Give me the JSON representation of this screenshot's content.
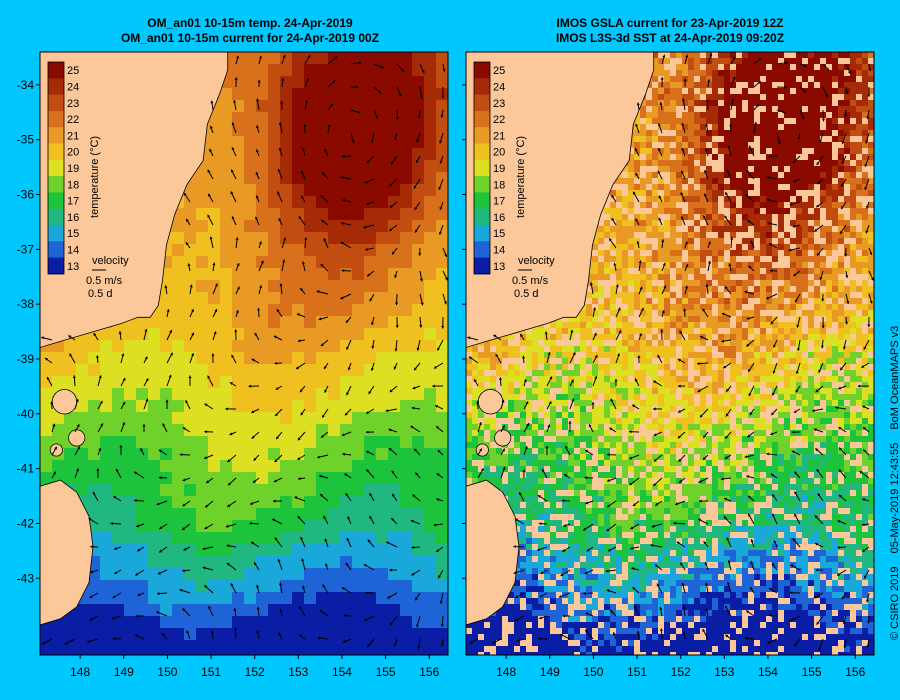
{
  "panels": [
    {
      "title_line1": "OM_an01 10-15m temp. 24-Apr-2019",
      "title_line2": "OM_an01 10-15m current for 24-Apr-2019 00Z",
      "type": "model"
    },
    {
      "title_line1": "IMOS GSLA current for 23-Apr-2019 12Z",
      "title_line2": "IMOS L3S-3d SST at 24-Apr-2019 09:20Z",
      "type": "observed"
    }
  ],
  "axes": {
    "lat_labels": [
      "-34",
      "-35",
      "-36",
      "-37",
      "-38",
      "-39",
      "-40",
      "-41",
      "-42",
      "-43"
    ],
    "lat_values": [
      -34,
      -35,
      -36,
      -37,
      -38,
      -39,
      -40,
      -41,
      -42,
      -43
    ],
    "lon_labels": [
      "148",
      "149",
      "150",
      "151",
      "152",
      "153",
      "154",
      "155",
      "156"
    ],
    "lon_values": [
      148,
      149,
      150,
      151,
      152,
      153,
      154,
      155,
      156
    ]
  },
  "colorbar": {
    "label": "temperature (°C)",
    "ticks": [
      "25",
      "24",
      "23",
      "22",
      "21",
      "20",
      "19",
      "18",
      "17",
      "16",
      "15",
      "14",
      "13"
    ],
    "tick_values": [
      25,
      24,
      23,
      22,
      21,
      20,
      19,
      18,
      17,
      16,
      15,
      14,
      13
    ],
    "colors": [
      "#8b0a00",
      "#a52a05",
      "#c24d10",
      "#d8701c",
      "#e89a25",
      "#f0c020",
      "#dde022",
      "#6ed22a",
      "#1dc33a",
      "#20b880",
      "#1aa7d9",
      "#1e64d6",
      "#0a1da5"
    ]
  },
  "velocity_legend": {
    "title": "velocity",
    "speed": "0.5 m/s",
    "duration": "0.5 d"
  },
  "colors": {
    "background": "#00c8ff",
    "land": "#fcc89a",
    "coastline": "#000000"
  },
  "credit": {
    "copyright": "© CSIRO 2019",
    "timestamp": "05-May-2019 12:43:55",
    "source": "BoM OceanMAPS v3"
  }
}
